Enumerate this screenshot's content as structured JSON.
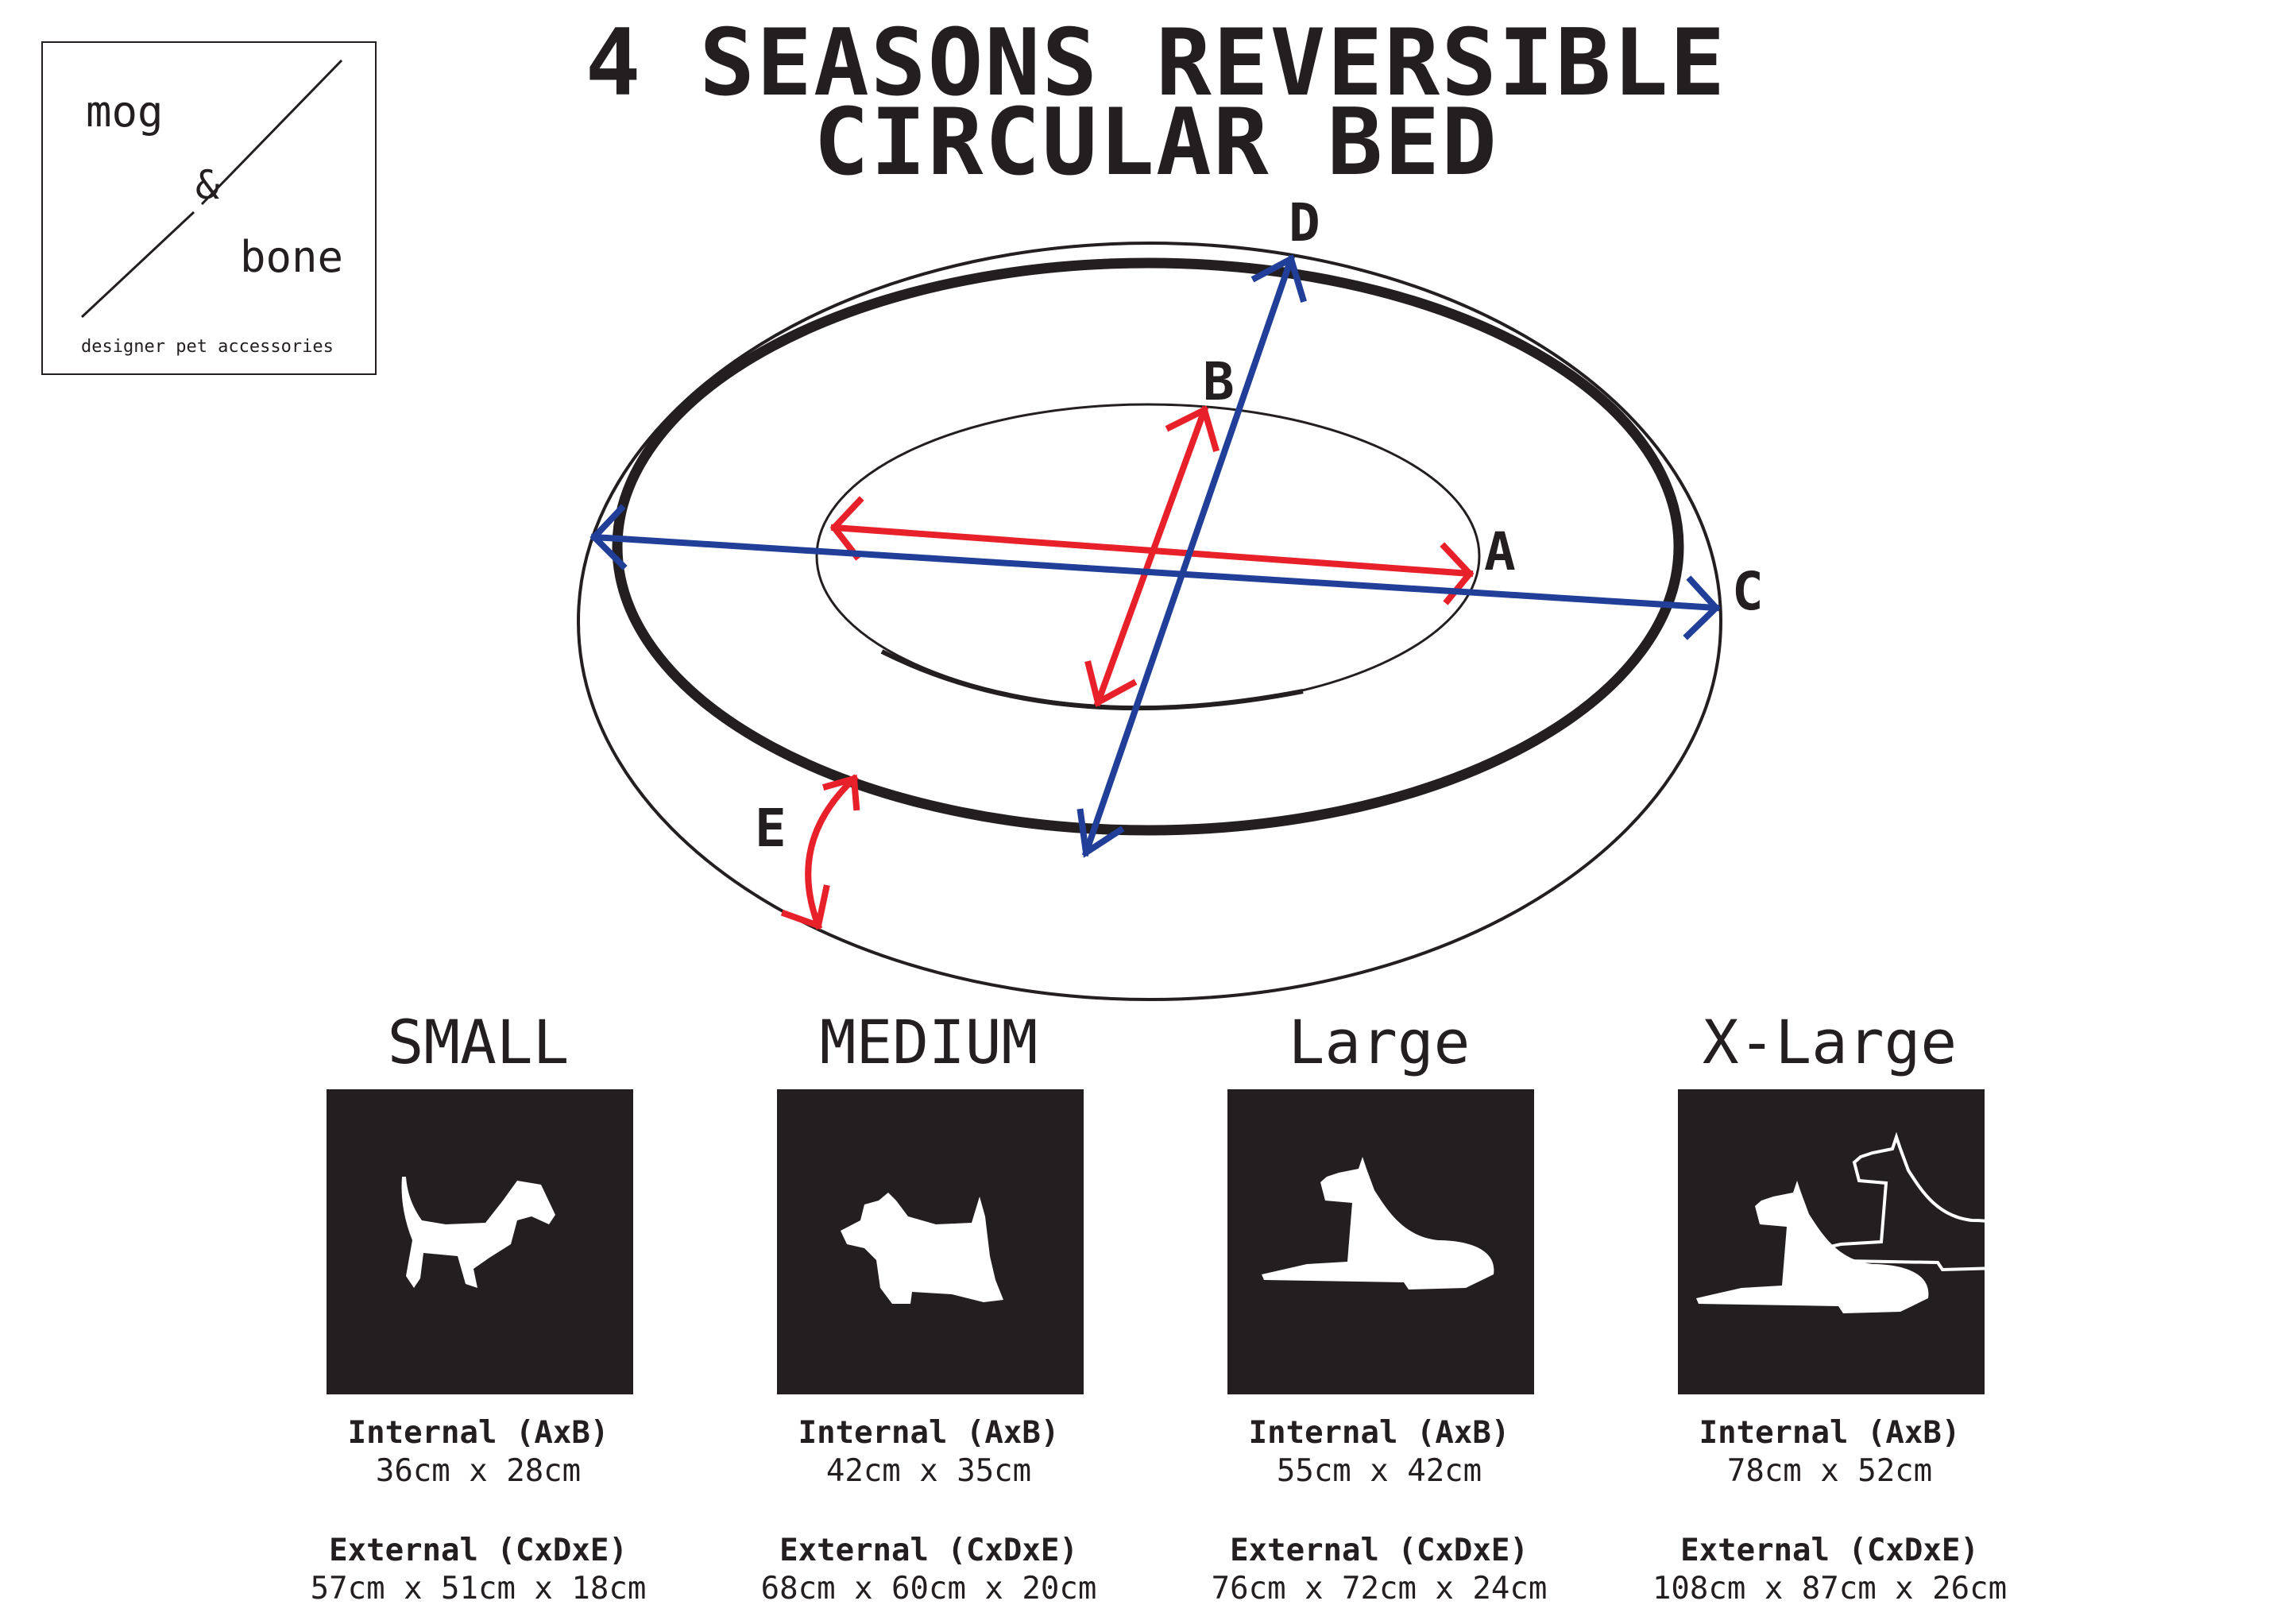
{
  "logo": {
    "line1": "mog",
    "amp": "&",
    "line2": "bone",
    "tagline": "designer pet accessories"
  },
  "title": {
    "line1": "4 SEASONS REVERSIBLE",
    "line2": "CIRCULAR BED"
  },
  "diagram": {
    "labels": {
      "a": "A",
      "b": "B",
      "c": "C",
      "d": "D",
      "e": "E"
    },
    "colors": {
      "internal": "#e8202a",
      "external": "#213f99",
      "outline": "#231f20"
    }
  },
  "sizes": [
    {
      "name": "SMALL",
      "icon": "dachshund-silhouette",
      "internal_label": "Internal (AxB)",
      "internal": "36cm x 28cm",
      "external_label": "External (CxDxE)",
      "external": "57cm x 51cm x 18cm"
    },
    {
      "name": "MEDIUM",
      "icon": "scottie-silhouette",
      "internal_label": "Internal (AxB)",
      "internal": "42cm x 35cm",
      "external_label": "External (CxDxE)",
      "external": "68cm x 60cm x 20cm"
    },
    {
      "name": "Large",
      "icon": "great-dane-silhouette",
      "internal_label": "Internal (AxB)",
      "internal": "55cm x 42cm",
      "external_label": "External (CxDxE)",
      "external": "76cm x 72cm x 24cm"
    },
    {
      "name": "X-Large",
      "icon": "two-great-danes-silhouette",
      "internal_label": "Internal (AxB)",
      "internal": "78cm x 52cm",
      "external_label": "External (CxDxE)",
      "external": "108cm x 87cm x 26cm"
    }
  ]
}
